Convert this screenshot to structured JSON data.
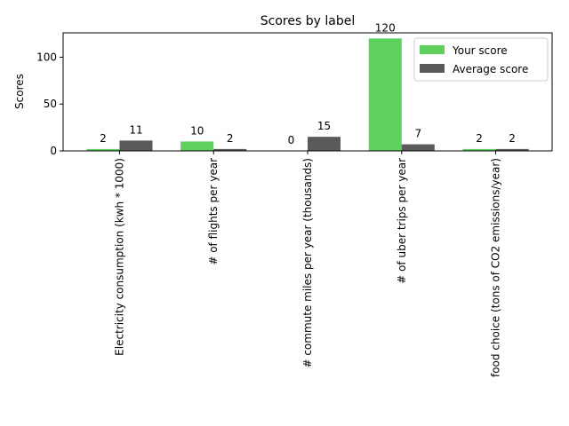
{
  "chart_data": {
    "type": "bar",
    "title": "Scores by label",
    "xlabel": "",
    "ylabel": "Scores",
    "categories": [
      "Electricity consumption (kwh * 1000)",
      "# of flights per year",
      "# commute miles per year (thousands)",
      "# of uber trips per year",
      "food choice (tons of CO2 emissions/year)"
    ],
    "series": [
      {
        "name": "Your score",
        "values": [
          2,
          10,
          0,
          120,
          2
        ],
        "color": "#5dd05d"
      },
      {
        "name": "Average score",
        "values": [
          11,
          2,
          15,
          7,
          2
        ],
        "color": "#5a5a5a"
      }
    ],
    "ylim": [
      0,
      126
    ],
    "yticks": [
      0,
      50,
      100
    ],
    "grid": false,
    "legend": "top-right"
  }
}
